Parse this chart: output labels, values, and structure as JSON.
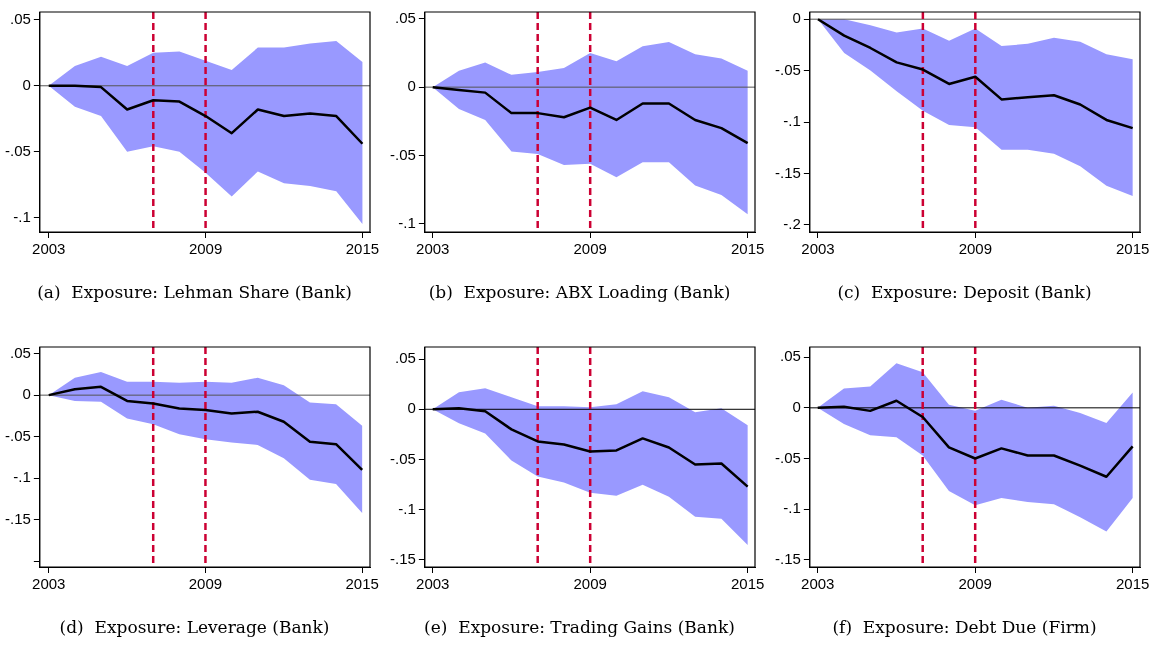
{
  "chart_data": [
    {
      "type": "line",
      "title": "(a)  Exposure: Lehman Share (Bank)",
      "x": [
        2003,
        2004,
        2005,
        2006,
        2007,
        2008,
        2009,
        2010,
        2011,
        2012,
        2013,
        2014,
        2015
      ],
      "xlim": [
        2002.66,
        2015.29
      ],
      "xticks": [
        2003,
        2009,
        2015
      ],
      "ylim": [
        -0.111,
        0.056
      ],
      "yticks": [
        {
          "value": 0.05,
          "label": ".05"
        },
        {
          "value": 0,
          "label": "0"
        },
        {
          "value": -0.05,
          "label": "-.05"
        },
        {
          "value": -0.1,
          "label": "-.1"
        }
      ],
      "grid": false,
      "legend": false,
      "series": [
        {
          "color": "#000000",
          "values": [
            0,
            0,
            -0.001,
            -0.018,
            -0.011,
            -0.012,
            -0.023,
            -0.036,
            -0.018,
            -0.023,
            -0.021,
            -0.023,
            -0.044
          ],
          "lower": [
            0,
            -0.016,
            -0.023,
            -0.05,
            -0.046,
            -0.05,
            -0.066,
            -0.084,
            -0.065,
            -0.074,
            -0.076,
            -0.08,
            -0.105
          ],
          "upper": [
            0,
            0.015,
            0.022,
            0.015,
            0.025,
            0.026,
            0.019,
            0.012,
            0.029,
            0.029,
            0.032,
            0.034,
            0.018
          ]
        }
      ],
      "ref_lines": [
        {
          "axis": "y",
          "value": 0,
          "color": "#555555",
          "line_style": "solid"
        },
        {
          "axis": "x",
          "value": 2007,
          "color": "#cc0033",
          "line_style": "dashed"
        },
        {
          "axis": "x",
          "value": 2009,
          "color": "#cc0033",
          "line_style": "dashed"
        }
      ]
    },
    {
      "type": "line",
      "title": "(b)  Exposure: ABX Loading (Bank)",
      "x": [
        2003,
        2004,
        2005,
        2006,
        2007,
        2008,
        2009,
        2010,
        2011,
        2012,
        2013,
        2014,
        2015
      ],
      "xlim": [
        2002.7,
        2015.28
      ],
      "xticks": [
        2003,
        2009,
        2015
      ],
      "ylim": [
        -0.106,
        0.055
      ],
      "yticks": [
        {
          "value": 0.05,
          "label": ".05"
        },
        {
          "value": 0,
          "label": "0"
        },
        {
          "value": -0.05,
          "label": "-.05"
        },
        {
          "value": -0.1,
          "label": "-.1"
        }
      ],
      "grid": false,
      "legend": false,
      "series": [
        {
          "color": "#000000",
          "values": [
            0,
            -0.002,
            -0.004,
            -0.019,
            -0.019,
            -0.022,
            -0.015,
            -0.024,
            -0.012,
            -0.012,
            -0.024,
            -0.03,
            -0.041
          ],
          "lower": [
            0,
            -0.016,
            -0.024,
            -0.047,
            -0.049,
            -0.057,
            -0.056,
            -0.066,
            -0.055,
            -0.055,
            -0.072,
            -0.079,
            -0.093
          ],
          "upper": [
            0,
            0.012,
            0.018,
            0.009,
            0.011,
            0.014,
            0.025,
            0.019,
            0.03,
            0.033,
            0.024,
            0.021,
            0.012
          ]
        }
      ],
      "ref_lines": [
        {
          "axis": "y",
          "value": 0,
          "color": "#555555",
          "line_style": "solid"
        },
        {
          "axis": "x",
          "value": 2007,
          "color": "#cc0033",
          "line_style": "dashed"
        },
        {
          "axis": "x",
          "value": 2009,
          "color": "#cc0033",
          "line_style": "dashed"
        }
      ]
    },
    {
      "type": "line",
      "title": "(c)  Exposure: Deposit (Bank)",
      "x": [
        2003,
        2004,
        2005,
        2006,
        2007,
        2008,
        2009,
        2010,
        2011,
        2012,
        2013,
        2014,
        2015
      ],
      "xlim": [
        2002.69,
        2015.28
      ],
      "xticks": [
        2003,
        2009,
        2015
      ],
      "ylim": [
        -0.207,
        0.007
      ],
      "yticks": [
        {
          "value": 0,
          "label": "0"
        },
        {
          "value": -0.05,
          "label": "-.05"
        },
        {
          "value": -0.1,
          "label": "-.1"
        },
        {
          "value": -0.15,
          "label": "-.15"
        },
        {
          "value": -0.2,
          "label": "-.2"
        }
      ],
      "grid": false,
      "legend": false,
      "series": [
        {
          "color": "#000000",
          "values": [
            0,
            -0.016,
            -0.028,
            -0.042,
            -0.049,
            -0.063,
            -0.056,
            -0.078,
            -0.076,
            -0.074,
            -0.083,
            -0.098,
            -0.106
          ],
          "lower": [
            0,
            -0.033,
            -0.05,
            -0.07,
            -0.089,
            -0.103,
            -0.105,
            -0.127,
            -0.127,
            -0.131,
            -0.143,
            -0.162,
            -0.172
          ],
          "upper": [
            0,
            0,
            -0.006,
            -0.013,
            -0.009,
            -0.021,
            -0.009,
            -0.026,
            -0.024,
            -0.018,
            -0.022,
            -0.034,
            -0.039
          ]
        }
      ],
      "ref_lines": [
        {
          "axis": "y",
          "value": 0,
          "color": "#555555",
          "line_style": "solid"
        },
        {
          "axis": "x",
          "value": 2007,
          "color": "#cc0033",
          "line_style": "dashed"
        },
        {
          "axis": "x",
          "value": 2009,
          "color": "#cc0033",
          "line_style": "dashed"
        }
      ]
    },
    {
      "type": "line",
      "title": "(d)  Exposure: Leverage (Bank)",
      "x": [
        2003,
        2004,
        2005,
        2006,
        2007,
        2008,
        2009,
        2010,
        2011,
        2012,
        2013,
        2014,
        2015
      ],
      "xlim": [
        2002.66,
        2015.3
      ],
      "xticks": [
        2003,
        2009,
        2015
      ],
      "ylim": [
        -0.207,
        0.058
      ],
      "yticks": [
        {
          "value": 0.05,
          "label": ".05"
        },
        {
          "value": 0,
          "label": "0"
        },
        {
          "value": -0.05,
          "label": "-.05"
        },
        {
          "value": -0.1,
          "label": "-.1"
        },
        {
          "value": -0.15,
          "label": "-.15"
        },
        {
          "value": -0.2,
          "label": null
        }
      ],
      "grid": false,
      "legend": false,
      "series": [
        {
          "color": "#000000",
          "values": [
            0,
            0.007,
            0.01,
            -0.007,
            -0.01,
            -0.016,
            -0.018,
            -0.022,
            -0.02,
            -0.032,
            -0.056,
            -0.059,
            -0.09
          ],
          "lower": [
            0,
            -0.007,
            -0.008,
            -0.028,
            -0.035,
            -0.047,
            -0.053,
            -0.057,
            -0.06,
            -0.076,
            -0.102,
            -0.107,
            -0.142
          ],
          "upper": [
            0,
            0.021,
            0.028,
            0.016,
            0.016,
            0.015,
            0.016,
            0.015,
            0.021,
            0.012,
            -0.009,
            -0.011,
            -0.037
          ]
        }
      ],
      "ref_lines": [
        {
          "axis": "y",
          "value": 0,
          "color": "#555555",
          "line_style": "solid"
        },
        {
          "axis": "x",
          "value": 2007,
          "color": "#cc0033",
          "line_style": "dashed"
        },
        {
          "axis": "x",
          "value": 2009,
          "color": "#cc0033",
          "line_style": "dashed"
        }
      ]
    },
    {
      "type": "line",
      "title": "(e)  Exposure: Trading Gains (Bank)",
      "x": [
        2003,
        2004,
        2005,
        2006,
        2007,
        2008,
        2009,
        2010,
        2011,
        2012,
        2013,
        2014,
        2015
      ],
      "xlim": [
        2002.7,
        2015.28
      ],
      "xticks": [
        2003,
        2009,
        2015
      ],
      "ylim": [
        -0.157,
        0.062
      ],
      "yticks": [
        {
          "value": 0.05,
          "label": ".05"
        },
        {
          "value": 0,
          "label": "0"
        },
        {
          "value": -0.05,
          "label": "-.05"
        },
        {
          "value": -0.1,
          "label": "-.1"
        },
        {
          "value": -0.15,
          "label": "-.15"
        }
      ],
      "grid": false,
      "legend": false,
      "series": [
        {
          "color": "#000000",
          "values": [
            0,
            0.001,
            -0.002,
            -0.02,
            -0.032,
            -0.035,
            -0.042,
            -0.041,
            -0.029,
            -0.038,
            -0.055,
            -0.054,
            -0.077
          ],
          "lower": [
            0,
            -0.014,
            -0.024,
            -0.051,
            -0.067,
            -0.073,
            -0.083,
            -0.086,
            -0.075,
            -0.087,
            -0.107,
            -0.109,
            -0.135
          ],
          "upper": [
            0,
            0.017,
            0.021,
            0.012,
            0.003,
            0.003,
            0.002,
            0.005,
            0.018,
            0.012,
            -0.003,
            0.001,
            -0.016
          ]
        }
      ],
      "ref_lines": [
        {
          "axis": "y",
          "value": 0,
          "color": "#000000",
          "line_style": "solid"
        },
        {
          "axis": "x",
          "value": 2007,
          "color": "#cc0033",
          "line_style": "dashed"
        },
        {
          "axis": "x",
          "value": 2009,
          "color": "#cc0033",
          "line_style": "dashed"
        }
      ]
    },
    {
      "type": "line",
      "title": "(f)  Exposure: Debt Due (Firm)",
      "x": [
        2003,
        2004,
        2005,
        2006,
        2007,
        2008,
        2009,
        2010,
        2011,
        2012,
        2013,
        2014,
        2015
      ],
      "xlim": [
        2002.7,
        2015.28
      ],
      "xticks": [
        2003,
        2009,
        2015
      ],
      "ylim": [
        -0.157,
        0.06
      ],
      "yticks": [
        {
          "value": 0.05,
          "label": ".05"
        },
        {
          "value": 0,
          "label": "0"
        },
        {
          "value": -0.05,
          "label": "-.05"
        },
        {
          "value": -0.1,
          "label": "-.1"
        },
        {
          "value": -0.15,
          "label": "-.15"
        }
      ],
      "grid": false,
      "legend": false,
      "series": [
        {
          "color": "#000000",
          "values": [
            0,
            0.001,
            -0.003,
            0.007,
            -0.009,
            -0.039,
            -0.05,
            -0.04,
            -0.047,
            -0.047,
            -0.057,
            -0.068,
            -0.038
          ],
          "lower": [
            0,
            -0.016,
            -0.027,
            -0.029,
            -0.047,
            -0.082,
            -0.096,
            -0.089,
            -0.093,
            -0.095,
            -0.108,
            -0.122,
            -0.089
          ],
          "upper": [
            0,
            0.019,
            0.021,
            0.044,
            0.035,
            0.003,
            -0.003,
            0.008,
            0,
            0.002,
            -0.005,
            -0.015,
            0.015
          ]
        }
      ],
      "ref_lines": [
        {
          "axis": "y",
          "value": 0,
          "color": "#000000",
          "line_style": "solid"
        },
        {
          "axis": "x",
          "value": 2007,
          "color": "#cc0033",
          "line_style": "dashed"
        },
        {
          "axis": "x",
          "value": 2009,
          "color": "#cc0033",
          "line_style": "dashed"
        }
      ]
    }
  ]
}
